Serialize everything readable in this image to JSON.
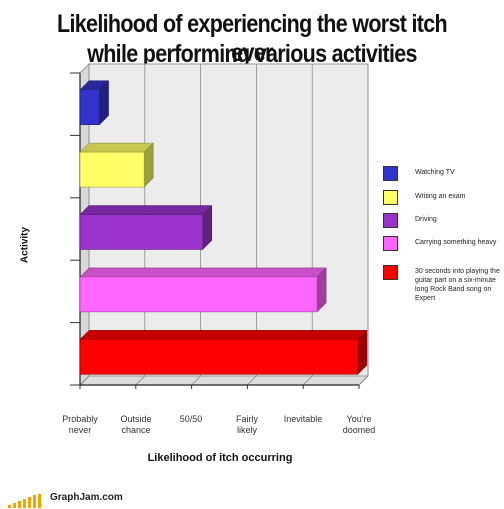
{
  "chart_data": {
    "type": "bar",
    "orientation": "horizontal",
    "title": "Likelihood of experiencing the worst itch ever while performing various activities",
    "title_lines": [
      "Likelihood of experiencing the worst itch ever",
      "while performing various activities"
    ],
    "xlabel": "Likelihood of itch occurring",
    "ylabel": "Activity",
    "x_ticks": [
      {
        "line1": "Probably",
        "line2": "never"
      },
      {
        "line1": "Outside",
        "line2": "chance"
      },
      {
        "line1": "50/50",
        "line2": ""
      },
      {
        "line1": "Fairly",
        "line2": "likely"
      },
      {
        "line1": "Inevitable",
        "line2": ""
      },
      {
        "line1": "You're",
        "line2": "doomed"
      }
    ],
    "xlim": [
      0,
      5
    ],
    "grid": true,
    "legend_position": "right",
    "series": [
      {
        "name": "Watching TV",
        "value": 0.35,
        "color": "#3333cc"
      },
      {
        "name": "Writing an exam",
        "value": 1.15,
        "color": "#ffff66"
      },
      {
        "name": "Driving",
        "value": 2.2,
        "color": "#9933cc"
      },
      {
        "name": "Carrying something heavy",
        "value": 4.25,
        "color": "#ff66ff"
      },
      {
        "name": "30 seconds into playing the guitar part on a six-minute long Rock Band song on Expert",
        "value": 4.98,
        "color": "#ff0000"
      }
    ]
  },
  "footer": {
    "text": "GraphJam.com",
    "accent_color": "#f5a300"
  }
}
